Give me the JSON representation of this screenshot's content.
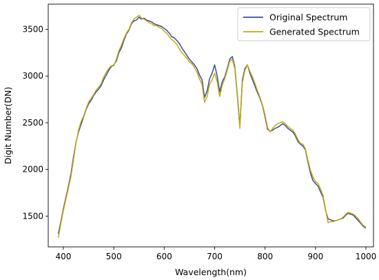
{
  "chart_data": {
    "type": "line",
    "xlabel": "Wavelength(nm)",
    "ylabel": "Digit Number(DN)",
    "xlim": [
      370,
      1015
    ],
    "ylim": [
      1170,
      3770
    ],
    "xticks": [
      400,
      500,
      600,
      700,
      800,
      900,
      1000
    ],
    "yticks": [
      1500,
      2000,
      2500,
      3000,
      3500
    ],
    "grid": false,
    "legend_position": "top-right",
    "series": [
      {
        "name": "Original Spectrum",
        "color": "#3b4a9a",
        "x": [
          390,
          395,
          400,
          405,
          410,
          415,
          420,
          425,
          430,
          435,
          440,
          445,
          450,
          455,
          460,
          465,
          470,
          475,
          480,
          485,
          490,
          495,
          500,
          505,
          510,
          515,
          520,
          525,
          530,
          535,
          540,
          545,
          550,
          555,
          560,
          565,
          570,
          575,
          580,
          585,
          590,
          595,
          600,
          605,
          610,
          615,
          620,
          625,
          630,
          635,
          640,
          645,
          650,
          655,
          660,
          665,
          670,
          675,
          680,
          685,
          690,
          695,
          700,
          705,
          710,
          715,
          720,
          725,
          730,
          735,
          740,
          745,
          750,
          755,
          760,
          765,
          770,
          775,
          780,
          785,
          790,
          795,
          800,
          805,
          810,
          815,
          820,
          825,
          830,
          835,
          840,
          845,
          850,
          855,
          860,
          865,
          870,
          875,
          880,
          885,
          890,
          895,
          900,
          905,
          910,
          915,
          920,
          925,
          930,
          935,
          940,
          945,
          950,
          955,
          960,
          965,
          970,
          975,
          980,
          985,
          990,
          995,
          1000
        ],
        "y": [
          1310,
          1440,
          1580,
          1700,
          1820,
          1950,
          2130,
          2290,
          2400,
          2480,
          2560,
          2640,
          2700,
          2740,
          2790,
          2830,
          2860,
          2900,
          2960,
          3010,
          3060,
          3100,
          3120,
          3160,
          3250,
          3300,
          3380,
          3450,
          3490,
          3560,
          3590,
          3600,
          3630,
          3610,
          3620,
          3600,
          3590,
          3580,
          3560,
          3550,
          3540,
          3530,
          3510,
          3490,
          3460,
          3420,
          3410,
          3380,
          3350,
          3300,
          3260,
          3220,
          3180,
          3150,
          3120,
          3080,
          3010,
          2960,
          2770,
          2840,
          2970,
          3030,
          3120,
          3000,
          2830,
          2940,
          2990,
          3080,
          3180,
          3210,
          3100,
          2800,
          2460,
          2960,
          3080,
          3120,
          3030,
          2960,
          2890,
          2820,
          2760,
          2680,
          2560,
          2430,
          2410,
          2420,
          2440,
          2450,
          2470,
          2490,
          2470,
          2440,
          2420,
          2400,
          2360,
          2300,
          2270,
          2250,
          2210,
          2080,
          1960,
          1880,
          1850,
          1820,
          1760,
          1700,
          1560,
          1470,
          1460,
          1450,
          1450,
          1460,
          1470,
          1480,
          1510,
          1530,
          1520,
          1510,
          1480,
          1450,
          1420,
          1390,
          1370
        ]
      },
      {
        "name": "Generated Spectrum",
        "color": "#c0aa10",
        "x": [
          390,
          395,
          400,
          405,
          410,
          415,
          420,
          425,
          430,
          435,
          440,
          445,
          450,
          455,
          460,
          465,
          470,
          475,
          480,
          485,
          490,
          495,
          500,
          505,
          510,
          515,
          520,
          525,
          530,
          535,
          540,
          545,
          550,
          555,
          560,
          565,
          570,
          575,
          580,
          585,
          590,
          595,
          600,
          605,
          610,
          615,
          620,
          625,
          630,
          635,
          640,
          645,
          650,
          655,
          660,
          665,
          670,
          675,
          680,
          685,
          690,
          695,
          700,
          705,
          710,
          715,
          720,
          725,
          730,
          735,
          740,
          745,
          750,
          755,
          760,
          765,
          770,
          775,
          780,
          785,
          790,
          795,
          800,
          805,
          810,
          815,
          820,
          825,
          830,
          835,
          840,
          845,
          850,
          855,
          860,
          865,
          870,
          875,
          880,
          885,
          890,
          895,
          900,
          905,
          910,
          915,
          920,
          925,
          930,
          935,
          940,
          945,
          950,
          955,
          960,
          965,
          970,
          975,
          980,
          985,
          990,
          995,
          1000
        ],
        "y": [
          1270,
          1420,
          1560,
          1680,
          1800,
          1920,
          2100,
          2280,
          2420,
          2510,
          2570,
          2650,
          2720,
          2760,
          2800,
          2850,
          2880,
          2920,
          2990,
          3040,
          3080,
          3110,
          3110,
          3180,
          3270,
          3330,
          3400,
          3460,
          3500,
          3570,
          3610,
          3630,
          3650,
          3620,
          3610,
          3590,
          3570,
          3560,
          3540,
          3540,
          3520,
          3510,
          3480,
          3460,
          3420,
          3390,
          3370,
          3340,
          3290,
          3250,
          3220,
          3190,
          3150,
          3130,
          3090,
          3040,
          2970,
          2910,
          2720,
          2780,
          2910,
          2960,
          3030,
          2940,
          2780,
          2900,
          2970,
          3060,
          3160,
          3180,
          3080,
          2780,
          2440,
          2930,
          3060,
          3120,
          3050,
          2990,
          2920,
          2840,
          2770,
          2690,
          2580,
          2450,
          2400,
          2440,
          2470,
          2490,
          2500,
          2510,
          2490,
          2460,
          2440,
          2420,
          2380,
          2320,
          2280,
          2270,
          2220,
          2100,
          1990,
          1920,
          1870,
          1850,
          1790,
          1720,
          1570,
          1430,
          1440,
          1440,
          1450,
          1460,
          1470,
          1490,
          1520,
          1540,
          1530,
          1520,
          1500,
          1470,
          1430,
          1400,
          1380
        ]
      }
    ]
  }
}
